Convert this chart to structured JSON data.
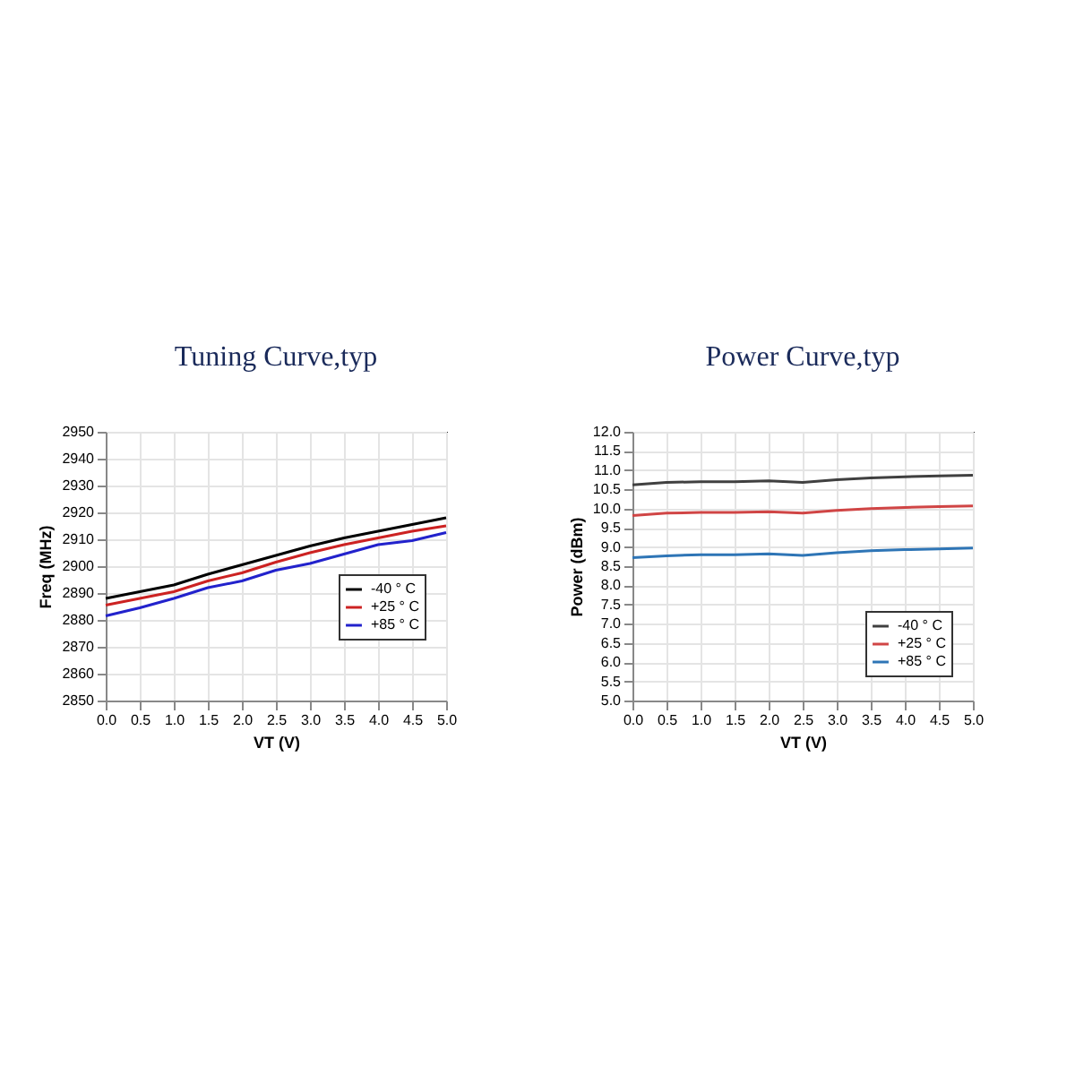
{
  "chart_data": [
    {
      "type": "line",
      "title": "Tuning Curve,typ",
      "xlabel": "VT (V)",
      "ylabel": "Freq (MHz)",
      "x": [
        0,
        0.5,
        1,
        1.5,
        2,
        2.5,
        3,
        3.5,
        4,
        4.5,
        5
      ],
      "series": [
        {
          "name": "-40 ° C",
          "color": "#000000",
          "values": [
            2888,
            2890.5,
            2893,
            2897,
            2900.5,
            2904,
            2907.5,
            2910.5,
            2913,
            2915.5,
            2918
          ]
        },
        {
          "name": "+25 ° C",
          "color": "#cc2222",
          "values": [
            2885.5,
            2888,
            2890.5,
            2894.5,
            2897.5,
            2901.5,
            2905,
            2908,
            2910.5,
            2913,
            2915
          ]
        },
        {
          "name": "+85 ° C",
          "color": "#2222cc",
          "values": [
            2881.5,
            2884.5,
            2888,
            2892,
            2894.5,
            2898.5,
            2901,
            2904.5,
            2908,
            2909.5,
            2912.5
          ]
        }
      ],
      "xlim": [
        0,
        5
      ],
      "xticks": [
        {
          "value": 0,
          "label": "0.0"
        },
        0.5,
        {
          "value": 1,
          "label": "1.0"
        },
        1.5,
        {
          "value": 2,
          "label": "2.0"
        },
        2.5,
        {
          "value": 3,
          "label": "3.0"
        },
        3.5,
        {
          "value": 4,
          "label": "4.0"
        },
        4.5,
        {
          "value": 5,
          "label": "5.0"
        }
      ],
      "ylim": [
        2850,
        2950
      ],
      "yticks": [
        2850,
        2860,
        2870,
        2880,
        2890,
        2900,
        2910,
        2920,
        2930,
        2940,
        2950
      ],
      "grid": true,
      "legend": "right",
      "line_style": "solid",
      "marker": "none"
    },
    {
      "type": "line",
      "title": "Power Curve,typ",
      "xlabel": "VT (V)",
      "ylabel": "Power (dBm)",
      "x": [
        0,
        0.5,
        1,
        1.5,
        2,
        2.5,
        3,
        3.5,
        4,
        4.5,
        5
      ],
      "series": [
        {
          "name": "-40 ° C",
          "color": "#404040",
          "values": [
            10.62,
            10.68,
            10.7,
            10.7,
            10.72,
            10.68,
            10.75,
            10.8,
            10.83,
            10.85,
            10.87
          ]
        },
        {
          "name": "+25 ° C",
          "color": "#d04545",
          "values": [
            9.82,
            9.88,
            9.9,
            9.9,
            9.92,
            9.88,
            9.95,
            10.0,
            10.03,
            10.05,
            10.07
          ]
        },
        {
          "name": "+85 ° C",
          "color": "#2e75b6",
          "values": [
            8.72,
            8.77,
            8.8,
            8.8,
            8.82,
            8.78,
            8.85,
            8.9,
            8.93,
            8.95,
            8.97
          ]
        }
      ],
      "xlim": [
        0,
        5
      ],
      "xticks": [
        {
          "value": 0,
          "label": "0.0"
        },
        0.5,
        {
          "value": 1,
          "label": "1.0"
        },
        1.5,
        {
          "value": 2,
          "label": "2.0"
        },
        2.5,
        {
          "value": 3,
          "label": "3.0"
        },
        3.5,
        {
          "value": 4,
          "label": "4.0"
        },
        4.5,
        {
          "value": 5,
          "label": "5.0"
        }
      ],
      "ylim": [
        5,
        12
      ],
      "yticks": [
        {
          "value": 5,
          "label": "5.0"
        },
        5.5,
        {
          "value": 6,
          "label": "6.0"
        },
        6.5,
        {
          "value": 7,
          "label": "7.0"
        },
        7.5,
        {
          "value": 8,
          "label": "8.0"
        },
        8.5,
        {
          "value": 9,
          "label": "9.0"
        },
        9.5,
        {
          "value": 10,
          "label": "10.0"
        },
        10.5,
        {
          "value": 11,
          "label": "11.0"
        },
        11.5,
        {
          "value": 12,
          "label": "12.0"
        }
      ],
      "grid": true,
      "legend": "bottom right",
      "line_style": "solid",
      "marker": "none"
    }
  ]
}
